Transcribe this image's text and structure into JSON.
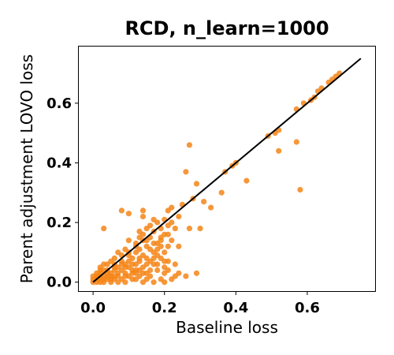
{
  "chart_data": {
    "type": "scatter",
    "title": "RCD, n_learn=1000",
    "xlabel": "Baseline loss",
    "ylabel": "Parent adjustment LOVO loss",
    "xlim": [
      -0.04,
      0.79
    ],
    "ylim": [
      -0.03,
      0.79
    ],
    "xticks": [
      0.0,
      0.2,
      0.4,
      0.6
    ],
    "yticks": [
      0.0,
      0.2,
      0.4,
      0.6
    ],
    "xtick_labels": [
      "0.0",
      "0.2",
      "0.4",
      "0.6"
    ],
    "ytick_labels": [
      "0.0",
      "0.2",
      "0.4",
      "0.6"
    ],
    "grid": false,
    "marker_color": "#f58518",
    "reference_line": {
      "x": [
        0.0,
        0.75
      ],
      "y": [
        0.0,
        0.75
      ],
      "color": "#000000"
    },
    "points": [
      [
        0.69,
        0.7
      ],
      [
        0.68,
        0.69
      ],
      [
        0.67,
        0.68
      ],
      [
        0.66,
        0.67
      ],
      [
        0.64,
        0.65
      ],
      [
        0.63,
        0.64
      ],
      [
        0.62,
        0.62
      ],
      [
        0.61,
        0.61
      ],
      [
        0.59,
        0.6
      ],
      [
        0.57,
        0.58
      ],
      [
        0.57,
        0.47
      ],
      [
        0.58,
        0.31
      ],
      [
        0.52,
        0.51
      ],
      [
        0.51,
        0.5
      ],
      [
        0.49,
        0.49
      ],
      [
        0.52,
        0.44
      ],
      [
        0.4,
        0.4
      ],
      [
        0.39,
        0.39
      ],
      [
        0.37,
        0.37
      ],
      [
        0.43,
        0.34
      ],
      [
        0.36,
        0.3
      ],
      [
        0.27,
        0.46
      ],
      [
        0.26,
        0.37
      ],
      [
        0.29,
        0.33
      ],
      [
        0.28,
        0.28
      ],
      [
        0.31,
        0.27
      ],
      [
        0.33,
        0.25
      ],
      [
        0.25,
        0.26
      ],
      [
        0.27,
        0.18
      ],
      [
        0.3,
        0.18
      ],
      [
        0.22,
        0.25
      ],
      [
        0.21,
        0.24
      ],
      [
        0.24,
        0.22
      ],
      [
        0.08,
        0.24
      ],
      [
        0.1,
        0.23
      ],
      [
        0.14,
        0.24
      ],
      [
        0.14,
        0.22
      ],
      [
        0.17,
        0.21
      ],
      [
        0.18,
        0.2
      ],
      [
        0.2,
        0.21
      ],
      [
        0.03,
        0.18
      ],
      [
        0.16,
        0.19
      ],
      [
        0.15,
        0.18
      ],
      [
        0.19,
        0.18
      ],
      [
        0.21,
        0.19
      ],
      [
        0.13,
        0.17
      ],
      [
        0.17,
        0.17
      ],
      [
        0.2,
        0.16
      ],
      [
        0.23,
        0.18
      ],
      [
        0.16,
        0.15
      ],
      [
        0.14,
        0.14
      ],
      [
        0.19,
        0.15
      ],
      [
        0.22,
        0.14
      ],
      [
        0.12,
        0.13
      ],
      [
        0.15,
        0.12
      ],
      [
        0.18,
        0.13
      ],
      [
        0.21,
        0.12
      ],
      [
        0.24,
        0.12
      ],
      [
        0.09,
        0.11
      ],
      [
        0.12,
        0.1
      ],
      [
        0.14,
        0.09
      ],
      [
        0.17,
        0.1
      ],
      [
        0.2,
        0.1
      ],
      [
        0.07,
        0.1
      ],
      [
        0.1,
        0.09
      ],
      [
        0.13,
        0.08
      ],
      [
        0.16,
        0.07
      ],
      [
        0.19,
        0.08
      ],
      [
        0.21,
        0.07
      ],
      [
        0.06,
        0.08
      ],
      [
        0.08,
        0.07
      ],
      [
        0.11,
        0.06
      ],
      [
        0.14,
        0.05
      ],
      [
        0.17,
        0.06
      ],
      [
        0.2,
        0.05
      ],
      [
        0.23,
        0.06
      ],
      [
        0.04,
        0.06
      ],
      [
        0.06,
        0.05
      ],
      [
        0.09,
        0.05
      ],
      [
        0.12,
        0.04
      ],
      [
        0.15,
        0.03
      ],
      [
        0.18,
        0.04
      ],
      [
        0.21,
        0.04
      ],
      [
        0.03,
        0.04
      ],
      [
        0.05,
        0.03
      ],
      [
        0.07,
        0.03
      ],
      [
        0.1,
        0.02
      ],
      [
        0.13,
        0.02
      ],
      [
        0.16,
        0.02
      ],
      [
        0.19,
        0.01
      ],
      [
        0.23,
        0.02
      ],
      [
        0.02,
        0.02
      ],
      [
        0.04,
        0.01
      ],
      [
        0.06,
        0.01
      ],
      [
        0.08,
        0.01
      ],
      [
        0.11,
        0.01
      ],
      [
        0.14,
        0.0
      ],
      [
        0.17,
        0.0
      ],
      [
        0.2,
        0.0
      ],
      [
        0.01,
        0.01
      ],
      [
        0.03,
        0.0
      ],
      [
        0.05,
        0.0
      ],
      [
        0.07,
        0.0
      ],
      [
        0.09,
        0.0
      ],
      [
        0.12,
        0.01
      ],
      [
        0.15,
        0.01
      ],
      [
        0.01,
        0.03
      ],
      [
        0.02,
        0.05
      ],
      [
        0.03,
        0.06
      ],
      [
        0.05,
        0.07
      ],
      [
        0.08,
        0.09
      ],
      [
        0.1,
        0.07
      ],
      [
        0.12,
        0.06
      ],
      [
        0.13,
        0.11
      ],
      [
        0.11,
        0.03
      ],
      [
        0.09,
        0.03
      ],
      [
        0.06,
        0.02
      ],
      [
        0.04,
        0.03
      ],
      [
        0.02,
        0.0
      ],
      [
        0.0,
        0.01
      ],
      [
        0.01,
        0.02
      ],
      [
        0.03,
        0.02
      ],
      [
        0.05,
        0.02
      ],
      [
        0.07,
        0.05
      ],
      [
        0.09,
        0.06
      ],
      [
        0.11,
        0.04
      ],
      [
        0.13,
        0.04
      ],
      [
        0.15,
        0.06
      ],
      [
        0.18,
        0.09
      ],
      [
        0.24,
        0.03
      ],
      [
        0.26,
        0.02
      ],
      [
        0.29,
        0.03
      ],
      [
        0.2,
        0.03
      ],
      [
        0.22,
        0.01
      ],
      [
        0.16,
        0.04
      ],
      [
        0.12,
        0.12
      ],
      [
        0.1,
        0.14
      ],
      [
        0.14,
        0.16
      ],
      [
        0.16,
        0.11
      ],
      [
        0.18,
        0.11
      ],
      [
        0.19,
        0.12
      ],
      [
        0.02,
        0.01
      ],
      [
        0.04,
        0.02
      ],
      [
        0.06,
        0.04
      ],
      [
        0.08,
        0.04
      ],
      [
        0.1,
        0.05
      ],
      [
        0.0,
        0.0
      ],
      [
        0.01,
        0.0
      ],
      [
        0.02,
        0.03
      ],
      [
        0.04,
        0.04
      ],
      [
        0.06,
        0.06
      ],
      [
        0.08,
        0.06
      ],
      [
        0.1,
        0.1
      ],
      [
        0.11,
        0.08
      ],
      [
        0.13,
        0.07
      ],
      [
        0.15,
        0.08
      ],
      [
        0.17,
        0.08
      ],
      [
        0.18,
        0.06
      ],
      [
        0.2,
        0.07
      ],
      [
        0.12,
        0.03
      ],
      [
        0.14,
        0.03
      ],
      [
        0.09,
        0.02
      ],
      [
        0.07,
        0.02
      ],
      [
        0.05,
        0.01
      ],
      [
        0.03,
        0.01
      ],
      [
        0.0,
        0.02
      ],
      [
        0.02,
        0.04
      ],
      [
        0.13,
        0.15
      ],
      [
        0.15,
        0.14
      ],
      [
        0.17,
        0.13
      ],
      [
        0.19,
        0.14
      ],
      [
        0.21,
        0.16
      ],
      [
        0.22,
        0.2
      ]
    ]
  }
}
